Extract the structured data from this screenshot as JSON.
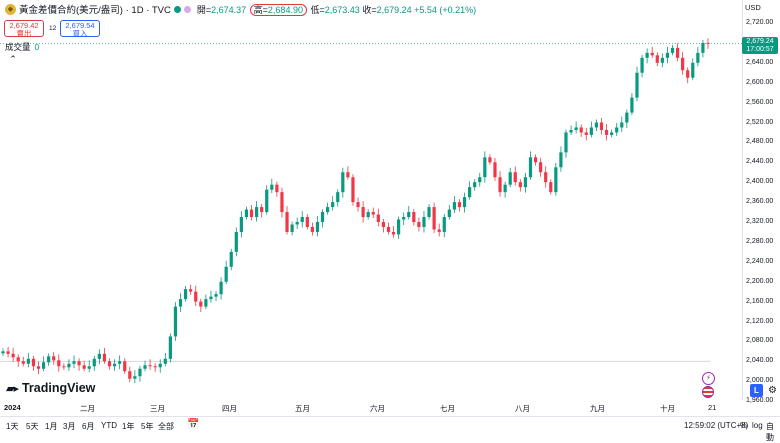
{
  "symbol": {
    "title": "黃金差價合約(美元/盎司) · 1D · TVC",
    "icon": "gold-coin-icon",
    "status_colors": [
      "#089981",
      "#e0c4f0"
    ]
  },
  "ohlc": {
    "open_label": "開=",
    "open": "2,674.37",
    "high_label": "高=",
    "high": "2,684.90",
    "low_label": "低=",
    "low": "2,673.43",
    "close_label": "收=",
    "close": "2,679.24",
    "change": "+5.54 (+0.21%)"
  },
  "trade": {
    "sell_price": "2,679.42",
    "sell_label": "賣出",
    "spread": "12",
    "buy_price": "2,679.54",
    "buy_label": "買入"
  },
  "volume": {
    "label": "成交量",
    "value": "0"
  },
  "axis": {
    "currency": "USD",
    "ticks": [
      "2,720.00",
      "2,680.00",
      "2,640.00",
      "2,600.00",
      "2,560.00",
      "2,520.00",
      "2,480.00",
      "2,440.00",
      "2,400.00",
      "2,360.00",
      "2,320.00",
      "2,280.00",
      "2,240.00",
      "2,200.00",
      "2,160.00",
      "2,120.00",
      "2,080.00",
      "2,040.00",
      "2,000.00",
      "1,960.00"
    ],
    "price_tag": "2,679.24",
    "countdown": "17:00:57"
  },
  "x_axis": [
    "2024",
    "二月",
    "三月",
    "四月",
    "五月",
    "六月",
    "七月",
    "八月",
    "九月",
    "十月",
    "21"
  ],
  "logo_text": "TradingView",
  "ranges": [
    "1天",
    "5天",
    "1月",
    "3月",
    "6月",
    "YTD",
    "1年",
    "5年",
    "全部"
  ],
  "footer": {
    "clock": "12:59:02 (UTC+8)",
    "percent": "%",
    "log": "log",
    "auto": "自動"
  },
  "colors": {
    "up": "#089981",
    "down": "#f23645",
    "accent": "#2962ff"
  },
  "chart_data": {
    "type": "candlestick",
    "ylim": [
      1950,
      2730
    ],
    "series_closes": [
      2060,
      2055,
      2048,
      2040,
      2035,
      2045,
      2030,
      2025,
      2038,
      2050,
      2042,
      2030,
      2028,
      2035,
      2040,
      2032,
      2025,
      2030,
      2045,
      2055,
      2040,
      2030,
      2035,
      2040,
      2020,
      2005,
      2010,
      2025,
      2032,
      2030,
      2028,
      2035,
      2045,
      2090,
      2150,
      2165,
      2185,
      2180,
      2160,
      2150,
      2165,
      2170,
      2175,
      2200,
      2230,
      2260,
      2300,
      2330,
      2345,
      2330,
      2350,
      2340,
      2385,
      2395,
      2380,
      2340,
      2300,
      2315,
      2320,
      2330,
      2310,
      2300,
      2320,
      2340,
      2350,
      2360,
      2380,
      2420,
      2410,
      2360,
      2350,
      2330,
      2340,
      2335,
      2320,
      2310,
      2300,
      2295,
      2325,
      2330,
      2340,
      2320,
      2310,
      2330,
      2350,
      2305,
      2300,
      2330,
      2345,
      2360,
      2350,
      2370,
      2390,
      2400,
      2410,
      2450,
      2440,
      2410,
      2380,
      2395,
      2420,
      2400,
      2390,
      2410,
      2450,
      2440,
      2420,
      2400,
      2380,
      2430,
      2460,
      2500,
      2505,
      2510,
      2500,
      2495,
      2510,
      2520,
      2505,
      2495,
      2500,
      2510,
      2520,
      2540,
      2570,
      2620,
      2650,
      2660,
      2655,
      2640,
      2650,
      2660,
      2670,
      2650,
      2625,
      2610,
      2640,
      2660,
      2680,
      2679
    ],
    "last": 2679.24
  }
}
